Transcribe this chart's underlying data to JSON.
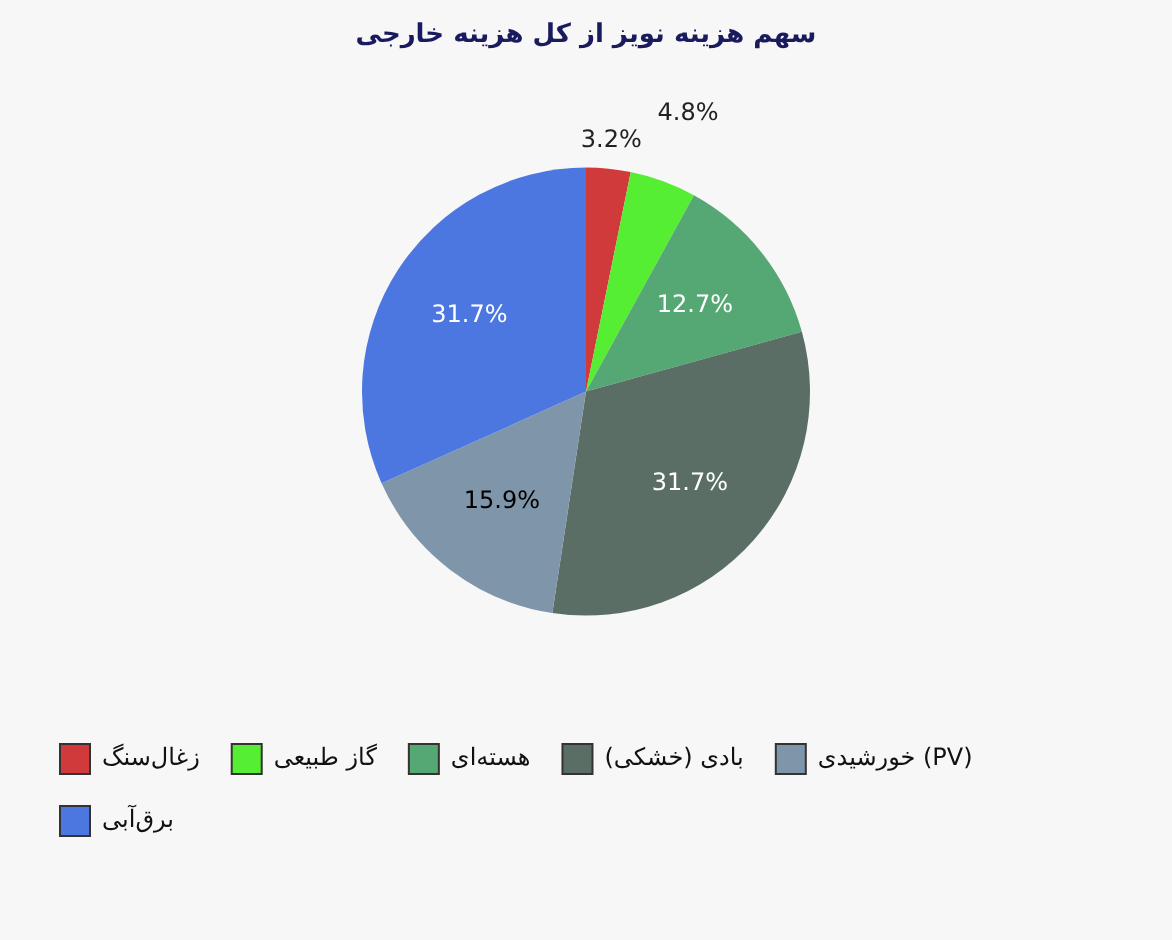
{
  "chart_data": {
    "type": "pie",
    "title": "سهم هزینه نویز از کل هزینه خارجی",
    "categories": [
      "زغال‌سنگ",
      "گاز طبیعی",
      "هسته‌ای",
      "بادی (خشکی)",
      "خورشیدی (PV)",
      "برق‌آبی"
    ],
    "values": [
      3.2,
      4.8,
      12.7,
      31.7,
      15.9,
      31.7
    ],
    "colors": [
      "#d03a3a",
      "#55ee33",
      "#55a873",
      "#5a6e66",
      "#7f95aa",
      "#4d77e0"
    ],
    "value_labels": [
      "3.2%",
      "4.8%",
      "12.7%",
      "31.7%",
      "15.9%",
      "31.7%"
    ],
    "legend": "bottom left"
  }
}
